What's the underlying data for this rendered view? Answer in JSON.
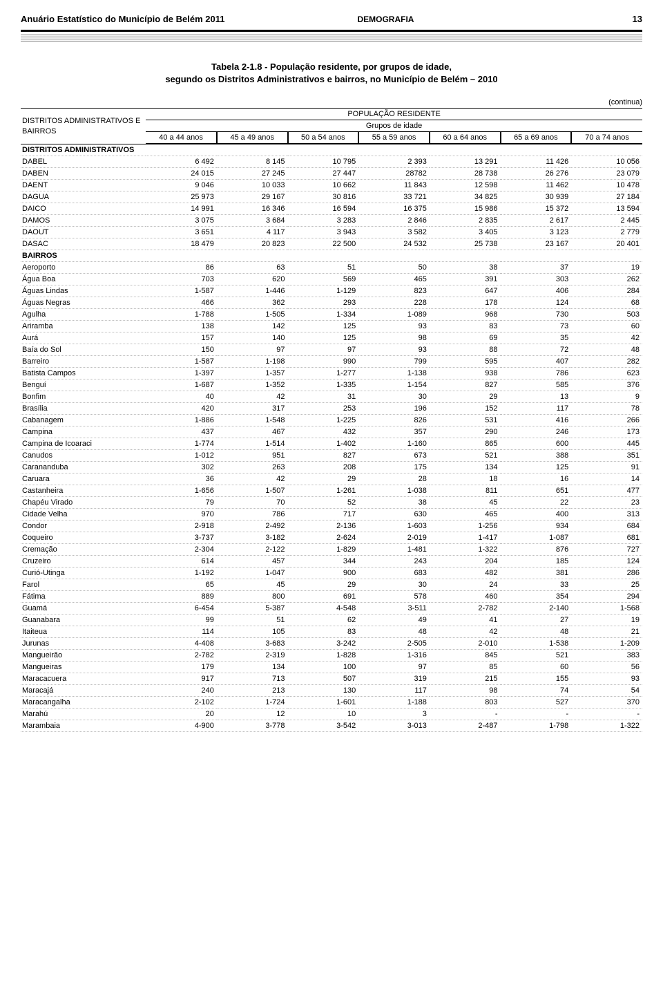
{
  "header": {
    "doc_title": "Anuário Estatístico do Município de Belém 2011",
    "section": "DEMOGRAFIA",
    "page_number": "13"
  },
  "table": {
    "caption_line1": "Tabela 2-1.8 - População residente, por grupos de idade,",
    "caption_line2": "segundo os Distritos Administrativos e bairros, no Município de Belém – 2010",
    "continua": "(continua)",
    "rowhead_line1": "DISTRITOS ADMINISTRATIVOS E",
    "rowhead_line2": "BAIRROS",
    "pop_header": "POPULAÇÃO RESIDENTE",
    "group_header": "Grupos de idade",
    "columns": [
      "40 a 44  anos",
      "45 a 49 anos",
      "50 a 54 anos",
      "55 a 59 anos",
      "60 a 64  anos",
      "65 a 69 anos",
      "70 a 74 anos"
    ],
    "section_label": "DISTRITOS ADMINISTRATIVOS",
    "districts": [
      {
        "name": "DABEL",
        "v": [
          "6 492",
          "8 145",
          "10 795",
          "2 393",
          "13 291",
          "11 426",
          "10 056"
        ]
      },
      {
        "name": "DABEN",
        "v": [
          "24 015",
          "27 245",
          "27 447",
          "28782",
          "28 738",
          "26 276",
          "23 079"
        ]
      },
      {
        "name": "DAENT",
        "v": [
          "9 046",
          "10 033",
          "10 662",
          "11 843",
          "12 598",
          "11 462",
          "10 478"
        ]
      },
      {
        "name": "DAGUA",
        "v": [
          "25 973",
          "29 167",
          "30 816",
          "33 721",
          "34 825",
          "30 939",
          "27 184"
        ]
      },
      {
        "name": "DAICO",
        "v": [
          "14 991",
          "16 346",
          "16 594",
          "16 375",
          "15 986",
          "15 372",
          "13 594"
        ]
      },
      {
        "name": "DAMOS",
        "v": [
          "3 075",
          "3 684",
          "3 283",
          "2 846",
          "2 835",
          "2 617",
          "2 445"
        ]
      },
      {
        "name": "DAOUT",
        "v": [
          "3 651",
          "4 117",
          "3 943",
          "3 582",
          "3 405",
          "3 123",
          "2 779"
        ]
      },
      {
        "name": "DASAC",
        "v": [
          "18 479",
          "20 823",
          "22 500",
          "24 532",
          "25 738",
          "23 167",
          "20 401"
        ]
      }
    ],
    "bairros_label": " BAIRROS",
    "bairros": [
      {
        "name": "Aeroporto",
        "v": [
          "86",
          "63",
          "51",
          "50",
          "38",
          "37",
          "19"
        ]
      },
      {
        "name": "Água Boa",
        "v": [
          "703",
          "620",
          "569",
          "465",
          "391",
          "303",
          "262"
        ]
      },
      {
        "name": "Águas Lindas",
        "v": [
          "1-587",
          "1-446",
          "1-129",
          "823",
          "647",
          "406",
          "284"
        ]
      },
      {
        "name": "Águas Negras",
        "v": [
          "466",
          "362",
          "293",
          "228",
          "178",
          "124",
          "68"
        ]
      },
      {
        "name": "Agulha",
        "v": [
          "1-788",
          "1-505",
          "1-334",
          "1-089",
          "968",
          "730",
          "503"
        ]
      },
      {
        "name": "Ariramba",
        "v": [
          "138",
          "142",
          "125",
          "93",
          "83",
          "73",
          "60"
        ]
      },
      {
        "name": "Aurá",
        "v": [
          "157",
          "140",
          "125",
          "98",
          "69",
          "35",
          "42"
        ]
      },
      {
        "name": "Baía do Sol",
        "v": [
          "150",
          "97",
          "97",
          "93",
          "88",
          "72",
          "48"
        ]
      },
      {
        "name": "Barreiro",
        "v": [
          "1-587",
          "1-198",
          "990",
          "799",
          "595",
          "407",
          "282"
        ]
      },
      {
        "name": "Batista Campos",
        "v": [
          "1-397",
          "1-357",
          "1-277",
          "1-138",
          "938",
          "786",
          "623"
        ]
      },
      {
        "name": "Benguí",
        "v": [
          "1-687",
          "1-352",
          "1-335",
          "1-154",
          "827",
          "585",
          "376"
        ]
      },
      {
        "name": "Bonfim",
        "v": [
          "40",
          "42",
          "31",
          "30",
          "29",
          "13",
          "9"
        ]
      },
      {
        "name": "Brasília",
        "v": [
          "420",
          "317",
          "253",
          "196",
          "152",
          "117",
          "78"
        ]
      },
      {
        "name": "Cabanagem",
        "v": [
          "1-886",
          "1-548",
          "1-225",
          "826",
          "531",
          "416",
          "266"
        ]
      },
      {
        "name": "Campina",
        "v": [
          "437",
          "467",
          "432",
          "357",
          "290",
          "246",
          "173"
        ]
      },
      {
        "name": "Campina de Icoaraci",
        "v": [
          "1-774",
          "1-514",
          "1-402",
          "1-160",
          "865",
          "600",
          "445"
        ]
      },
      {
        "name": "Canudos",
        "v": [
          "1-012",
          "951",
          "827",
          "673",
          "521",
          "388",
          "351"
        ]
      },
      {
        "name": "Carananduba",
        "v": [
          "302",
          "263",
          "208",
          "175",
          "134",
          "125",
          "91"
        ]
      },
      {
        "name": "Caruara",
        "v": [
          "36",
          "42",
          "29",
          "28",
          "18",
          "16",
          "14"
        ]
      },
      {
        "name": "Castanheira",
        "v": [
          "1-656",
          "1-507",
          "1-261",
          "1-038",
          "811",
          "651",
          "477"
        ]
      },
      {
        "name": "Chapéu Virado",
        "v": [
          "79",
          "70",
          "52",
          "38",
          "45",
          "22",
          "23"
        ]
      },
      {
        "name": "Cidade Velha",
        "v": [
          "970",
          "786",
          "717",
          "630",
          "465",
          "400",
          "313"
        ]
      },
      {
        "name": "Condor",
        "v": [
          "2-918",
          "2-492",
          "2-136",
          "1-603",
          "1-256",
          "934",
          "684"
        ]
      },
      {
        "name": "Coqueiro",
        "v": [
          "3-737",
          "3-182",
          "2-624",
          "2-019",
          "1-417",
          "1-087",
          "681"
        ]
      },
      {
        "name": "Cremação",
        "v": [
          "2-304",
          "2-122",
          "1-829",
          "1-481",
          "1-322",
          "876",
          "727"
        ]
      },
      {
        "name": "Cruzeiro",
        "v": [
          "614",
          "457",
          "344",
          "243",
          "204",
          "185",
          "124"
        ]
      },
      {
        "name": "Curió-Utinga",
        "v": [
          "1-192",
          "1-047",
          "900",
          "683",
          "482",
          "381",
          "286"
        ]
      },
      {
        "name": "Farol",
        "v": [
          "65",
          "45",
          "29",
          "30",
          "24",
          "33",
          "25"
        ]
      },
      {
        "name": "Fátima",
        "v": [
          "889",
          "800",
          "691",
          "578",
          "460",
          "354",
          "294"
        ]
      },
      {
        "name": "Guamá",
        "v": [
          "6-454",
          "5-387",
          "4-548",
          "3-511",
          "2-782",
          "2-140",
          "1-568"
        ]
      },
      {
        "name": "Guanabara",
        "v": [
          "99",
          "51",
          "62",
          "49",
          "41",
          "27",
          "19"
        ]
      },
      {
        "name": "Itaiteua",
        "v": [
          "114",
          "105",
          "83",
          "48",
          "42",
          "48",
          "21"
        ]
      },
      {
        "name": "Jurunas",
        "v": [
          "4-408",
          "3-683",
          "3-242",
          "2-505",
          "2-010",
          "1-538",
          "1-209"
        ]
      },
      {
        "name": "Mangueirão",
        "v": [
          "2-782",
          "2-319",
          "1-828",
          "1-316",
          "845",
          "521",
          "383"
        ]
      },
      {
        "name": "Mangueiras",
        "v": [
          "179",
          "134",
          "100",
          "97",
          "85",
          "60",
          "56"
        ]
      },
      {
        "name": "Maracacuera",
        "v": [
          "917",
          "713",
          "507",
          "319",
          "215",
          "155",
          "93"
        ]
      },
      {
        "name": "Maracajá",
        "v": [
          "240",
          "213",
          "130",
          "117",
          "98",
          "74",
          "54"
        ]
      },
      {
        "name": "Maracangalha",
        "v": [
          "2-102",
          "1-724",
          "1-601",
          "1-188",
          "803",
          "527",
          "370"
        ]
      },
      {
        "name": "Marahú",
        "v": [
          "20",
          "12",
          "10",
          "3",
          "-",
          "-",
          "-"
        ]
      },
      {
        "name": "Marambaia",
        "v": [
          "4-900",
          "3-778",
          "3-542",
          "3-013",
          "2-487",
          "1-798",
          "1-322"
        ]
      }
    ]
  }
}
